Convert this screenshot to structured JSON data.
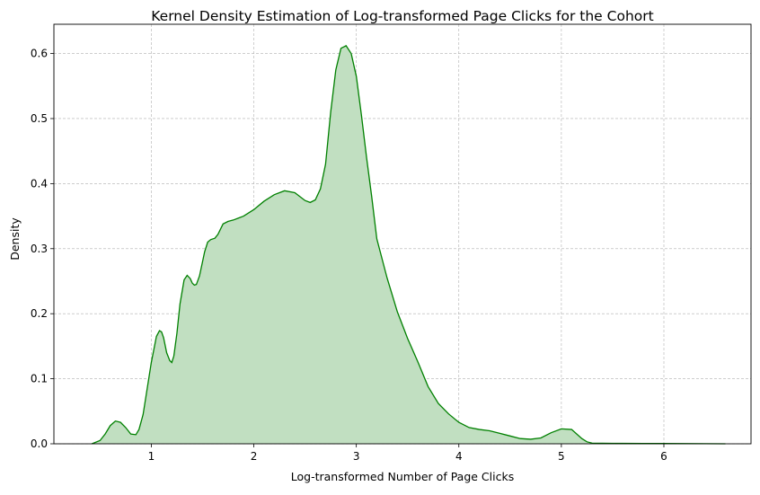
{
  "chart_data": {
    "type": "area",
    "title": "Kernel Density Estimation of Log-transformed Page Clicks for the Cohort",
    "xlabel": "Log-transformed Number of Page Clicks",
    "ylabel": "Density",
    "xlim": [
      0.05,
      6.85
    ],
    "ylim": [
      0,
      0.645
    ],
    "xticks": [
      1,
      2,
      3,
      4,
      5,
      6
    ],
    "yticks": [
      0.0,
      0.1,
      0.2,
      0.3,
      0.4,
      0.5,
      0.6
    ],
    "grid": true,
    "legend": "none",
    "colors": {
      "line": "#008000",
      "fill": "#c1dfc1",
      "grid": "#b0b0b0"
    },
    "series": [
      {
        "x": [
          0.42,
          0.5,
          0.55,
          0.6,
          0.65,
          0.7,
          0.75,
          0.8,
          0.85,
          0.88,
          0.92,
          0.95,
          1.0,
          1.05,
          1.08,
          1.1,
          1.12,
          1.15,
          1.18,
          1.2,
          1.22,
          1.25,
          1.28,
          1.32,
          1.35,
          1.38,
          1.4,
          1.42,
          1.44,
          1.47,
          1.5,
          1.52,
          1.55,
          1.58,
          1.62,
          1.65,
          1.7,
          1.75,
          1.8,
          1.85,
          1.9,
          2.0,
          2.1,
          2.2,
          2.3,
          2.4,
          2.5,
          2.55,
          2.6,
          2.65,
          2.7,
          2.75,
          2.8,
          2.85,
          2.9,
          2.95,
          3.0,
          3.05,
          3.1,
          3.15,
          3.2,
          3.3,
          3.4,
          3.5,
          3.6,
          3.7,
          3.8,
          3.9,
          4.0,
          4.1,
          4.2,
          4.3,
          4.4,
          4.5,
          4.6,
          4.7,
          4.8,
          4.9,
          5.0,
          5.1,
          5.15,
          5.2,
          5.25,
          5.3,
          5.35,
          5.4,
          5.5,
          5.6,
          5.8,
          6.0,
          6.2,
          6.4,
          6.6
        ],
        "y": [
          0.0,
          0.005,
          0.015,
          0.028,
          0.035,
          0.033,
          0.025,
          0.015,
          0.014,
          0.022,
          0.045,
          0.075,
          0.125,
          0.165,
          0.174,
          0.172,
          0.163,
          0.14,
          0.128,
          0.125,
          0.135,
          0.17,
          0.215,
          0.252,
          0.259,
          0.254,
          0.247,
          0.244,
          0.245,
          0.258,
          0.28,
          0.295,
          0.31,
          0.314,
          0.316,
          0.322,
          0.338,
          0.342,
          0.344,
          0.347,
          0.35,
          0.36,
          0.373,
          0.383,
          0.389,
          0.386,
          0.374,
          0.371,
          0.375,
          0.392,
          0.43,
          0.51,
          0.575,
          0.608,
          0.612,
          0.6,
          0.565,
          0.505,
          0.44,
          0.38,
          0.315,
          0.255,
          0.203,
          0.162,
          0.126,
          0.088,
          0.062,
          0.046,
          0.033,
          0.025,
          0.022,
          0.02,
          0.016,
          0.012,
          0.008,
          0.007,
          0.009,
          0.017,
          0.023,
          0.022,
          0.015,
          0.008,
          0.003,
          0.001,
          0.0008,
          0.0008,
          0.0007,
          0.0006,
          0.0005,
          0.0004,
          0.0003,
          0.0002,
          0.0
        ]
      }
    ]
  }
}
